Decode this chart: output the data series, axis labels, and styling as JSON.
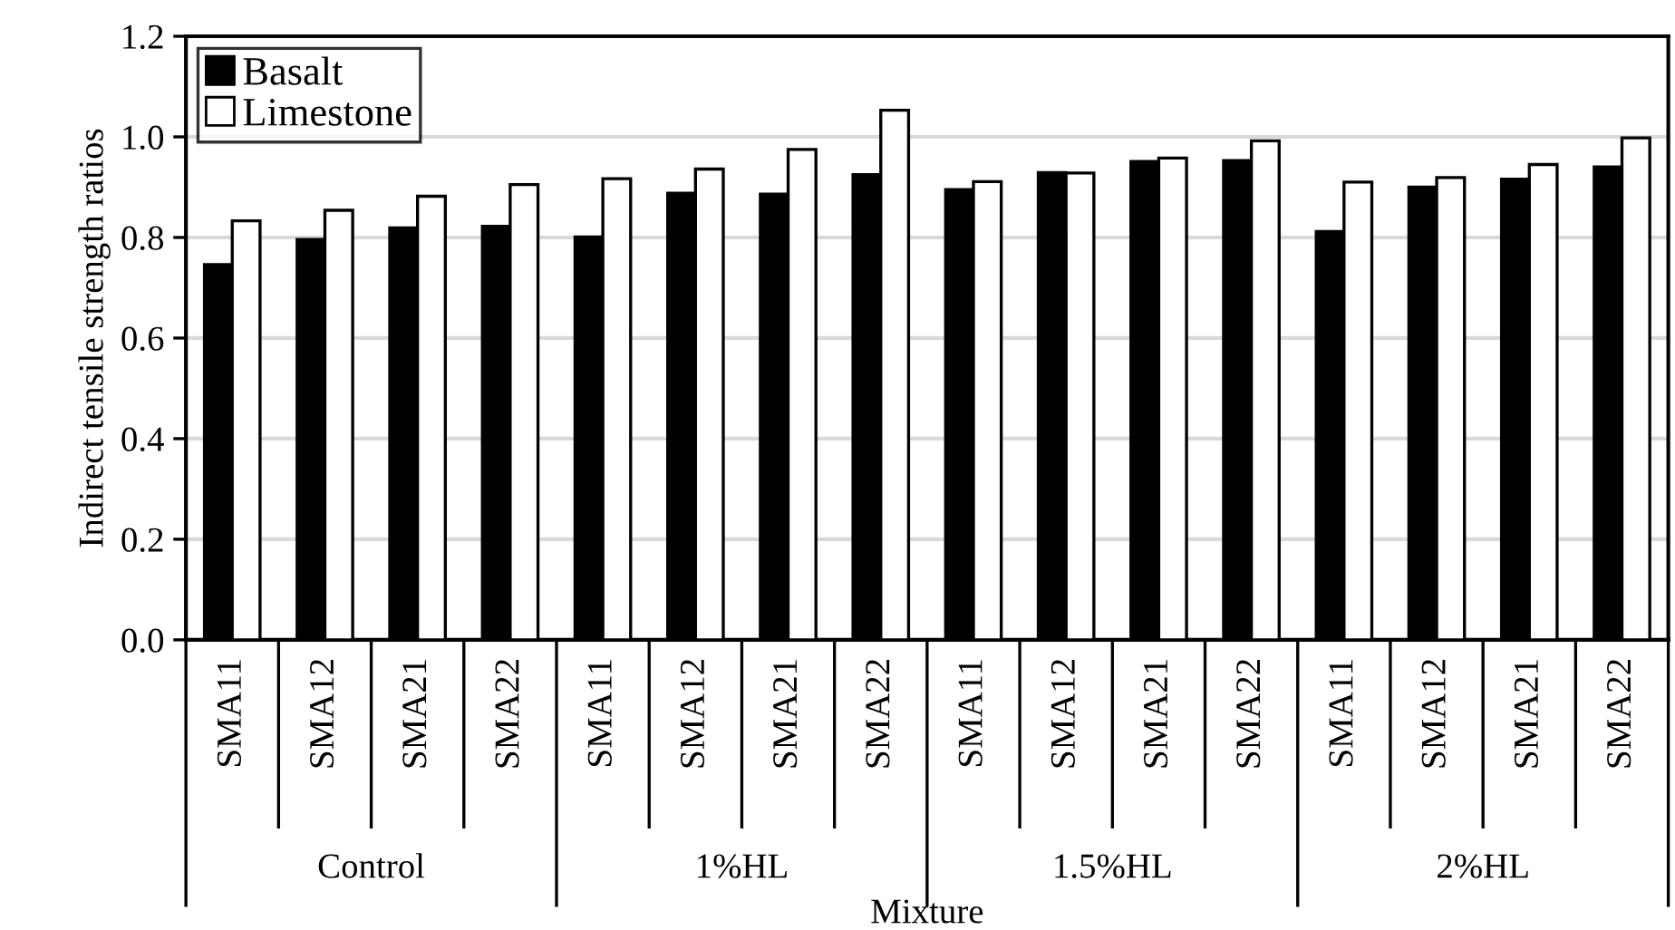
{
  "chart_data": {
    "type": "bar",
    "ylabel": "Indirect tensile strength ratios",
    "xlabel": "Mixture",
    "categories": [
      "SMA11",
      "SMA12",
      "SMA21",
      "SMA22",
      "SMA11",
      "SMA12",
      "SMA21",
      "SMA22",
      "SMA11",
      "SMA12",
      "SMA21",
      "SMA22",
      "SMA11",
      "SMA12",
      "SMA21",
      "SMA22"
    ],
    "annotations": [
      "Control",
      "1%HL",
      "1.5%HL",
      "2%HL"
    ],
    "series": [
      {
        "name": "Basalt",
        "color": "#000000",
        "values": [
          0.746,
          0.796,
          0.819,
          0.822,
          0.801,
          0.888,
          0.886,
          0.925,
          0.895,
          0.929,
          0.951,
          0.953,
          0.812,
          0.9,
          0.916,
          0.94
        ]
      },
      {
        "name": "Limestone",
        "color": "#ffffff",
        "values": [
          0.833,
          0.854,
          0.882,
          0.905,
          0.917,
          0.936,
          0.975,
          1.053,
          0.911,
          0.928,
          0.958,
          0.992,
          0.91,
          0.919,
          0.945,
          0.998
        ]
      }
    ],
    "ylim": [
      0,
      1.2
    ],
    "yticks": [
      {
        "value": 0,
        "label": "0.0"
      },
      {
        "value": 0.2,
        "label": "0.2"
      },
      {
        "value": 0.4,
        "label": "0.4"
      },
      {
        "value": 0.6,
        "label": "0.6"
      },
      {
        "value": 0.8,
        "label": "0.8"
      },
      {
        "value": 1,
        "label": "1.0"
      },
      {
        "value": 1.2,
        "label": "1.2"
      }
    ],
    "grid": "y",
    "legend": "top left"
  }
}
